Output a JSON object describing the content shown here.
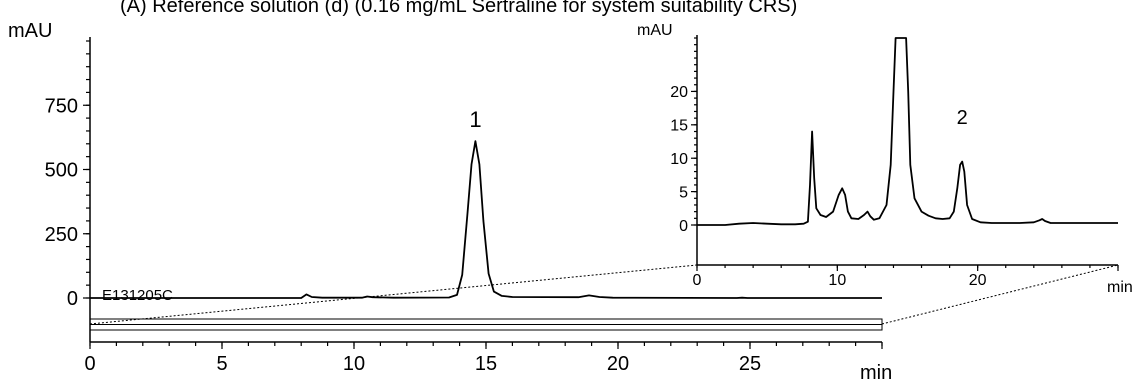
{
  "figure": {
    "title": "(A)   Reference solution (d)   (0.16 mg/mL Sertraline for system suitability CRS)"
  },
  "chart_data": [
    {
      "type": "line",
      "ylabel": "mAU",
      "xlabel": "min",
      "xlim": [
        0,
        30
      ],
      "ylim": [
        -30,
        1000
      ],
      "xticks": [
        0,
        5,
        10,
        15,
        20,
        25,
        30
      ],
      "yticks": [
        0,
        250,
        500,
        750
      ],
      "tick_labels_x": [
        "0",
        "5",
        "10",
        "15",
        "20",
        "25"
      ],
      "tick_labels_y": [
        "0",
        "250",
        "500",
        "750"
      ],
      "sample_id": "E131205C",
      "peak_labels": [
        {
          "text": "1",
          "x": 14.6,
          "y": 610
        }
      ],
      "series": [
        {
          "x": [
            0,
            8.0,
            8.2,
            8.4,
            8.8,
            10.3,
            10.5,
            10.7,
            11.5,
            13.6,
            13.9,
            14.1,
            14.3,
            14.45,
            14.6,
            14.75,
            14.9,
            15.1,
            15.3,
            15.6,
            16.0,
            18.5,
            18.9,
            19.3,
            19.8,
            24.5,
            24.7,
            24.9,
            30
          ],
          "y": [
            0,
            0,
            14,
            4,
            1,
            1,
            6,
            3,
            1,
            2,
            12,
            90,
            330,
            520,
            610,
            520,
            300,
            95,
            25,
            8,
            4,
            3,
            10,
            4,
            1,
            0,
            1,
            0,
            0
          ]
        }
      ]
    },
    {
      "type": "line",
      "ylabel": "mAU",
      "xlabel": "min",
      "xlim": [
        0,
        30
      ],
      "ylim": [
        -2,
        28
      ],
      "xticks": [
        0,
        10,
        20,
        30
      ],
      "yticks": [
        0,
        5,
        10,
        15,
        20
      ],
      "tick_labels_x": [
        "0",
        "10",
        "20"
      ],
      "tick_labels_y": [
        "0",
        "5",
        "10",
        "15",
        "20"
      ],
      "peak_labels": [
        {
          "text": "2",
          "x": 18.9,
          "y": 13
        }
      ],
      "series": [
        {
          "x": [
            0,
            1,
            2,
            3,
            4,
            5,
            6,
            7,
            7.6,
            7.9,
            8.05,
            8.2,
            8.35,
            8.5,
            8.8,
            9.2,
            9.7,
            10.1,
            10.35,
            10.55,
            10.75,
            11.0,
            11.5,
            11.9,
            12.15,
            12.35,
            12.6,
            13.0,
            13.5,
            13.8,
            14.0,
            14.15,
            14.3,
            14.6,
            14.9,
            15.05,
            15.2,
            15.5,
            16.0,
            16.5,
            17.0,
            17.5,
            18.0,
            18.3,
            18.55,
            18.75,
            18.9,
            19.05,
            19.25,
            19.6,
            20.2,
            21,
            22,
            23,
            24,
            24.4,
            24.6,
            24.8,
            25.2,
            26,
            27,
            28,
            29,
            30
          ],
          "y": [
            0,
            0,
            0,
            0.2,
            0.3,
            0.2,
            0.1,
            0.1,
            0.2,
            0.5,
            6,
            14,
            7,
            2.5,
            1.5,
            1.2,
            2,
            4.5,
            5.5,
            4.5,
            2,
            1,
            0.9,
            1.5,
            2,
            1.3,
            0.8,
            1,
            3,
            9,
            20,
            28,
            28,
            28,
            28,
            20,
            9,
            4,
            2,
            1.4,
            1,
            0.9,
            1,
            2,
            5.5,
            9,
            9.5,
            8,
            3,
            0.9,
            0.4,
            0.3,
            0.3,
            0.3,
            0.4,
            0.7,
            0.9,
            0.6,
            0.3,
            0.3,
            0.3,
            0.3,
            0.3,
            0.3
          ]
        }
      ]
    }
  ]
}
